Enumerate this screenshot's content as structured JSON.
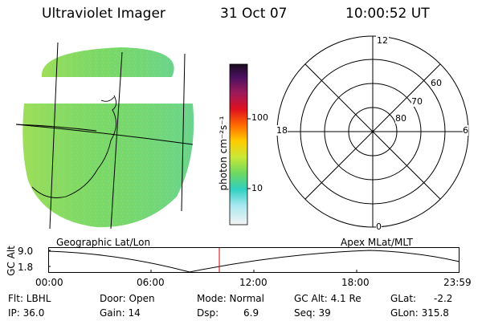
{
  "header": {
    "title": "Ultraviolet Imager",
    "date": "31 Oct 07",
    "time": "10:00:52 UT"
  },
  "colorbar": {
    "unit_label": "photon cm⁻²s⁻¹",
    "ticks": [
      "100",
      "10"
    ]
  },
  "left_panel": {
    "caption": "Geographic Lat/Lon"
  },
  "right_panel": {
    "caption": "Apex MLat/MLT",
    "mlt_labels": {
      "top": "12",
      "right": "6",
      "bottom": "0",
      "left": "18"
    },
    "mlat_labels": [
      "60",
      "70",
      "80"
    ]
  },
  "altitude_plot": {
    "y_label": "GC Alt",
    "y_ticks": [
      "9.0",
      "1.8"
    ],
    "x_ticks": [
      "00:00",
      "06:00",
      "12:00",
      "18:00",
      "23:59"
    ],
    "current_time_marker": "10:00:52",
    "colors": {
      "curve": "#000000",
      "marker": "#d00000"
    }
  },
  "status": {
    "filter": "Flt: LBHL",
    "ip": "IP: 36.0",
    "door": "Door: Open",
    "gain": "Gain: 14",
    "mode": "Mode: Normal",
    "dsp_label": "Dsp:",
    "dsp_value": "6.9",
    "gc_alt": "GC Alt: 4.1 Re",
    "seq": "Seq: 39",
    "glat_label": "GLat:",
    "glat_value": "-2.2",
    "glon": "GLon: 315.8"
  }
}
